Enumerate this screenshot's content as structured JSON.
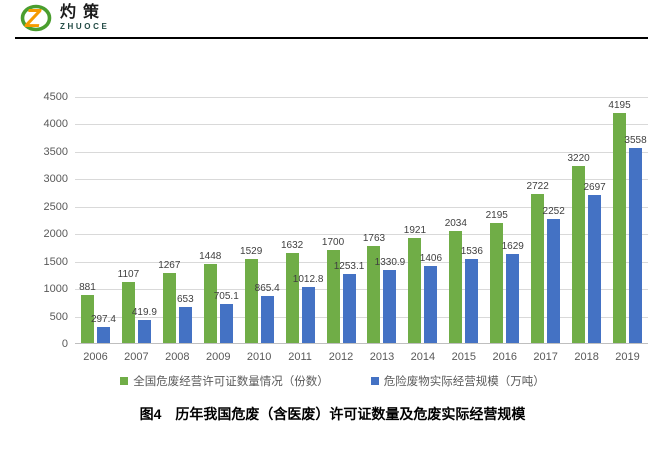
{
  "logo": {
    "name": "灼策",
    "subtitle": "ZHUOCE"
  },
  "caption": "图4　历年我国危废（含医废）许可证数量及危废实际经营规模",
  "colors": {
    "series_green": "#70AD47",
    "series_blue": "#4472C4",
    "gridline": "#D9D9D9",
    "axis_text": "#595959",
    "data_label": "#404040"
  },
  "chart_data": {
    "type": "bar",
    "categories": [
      "2006",
      "2007",
      "2008",
      "2009",
      "2010",
      "2011",
      "2012",
      "2013",
      "2014",
      "2015",
      "2016",
      "2017",
      "2018",
      "2019"
    ],
    "series": [
      {
        "name": "全国危废经营许可证数量情况（份数）",
        "key": "permits",
        "color": "#70AD47",
        "values": [
          881,
          1107,
          1267,
          1448,
          1529,
          1632,
          1700,
          1763,
          1921,
          2034,
          2195,
          2722,
          3220,
          4195
        ]
      },
      {
        "name": "危险废物实际经营规模（万吨）",
        "key": "scale",
        "color": "#4472C4",
        "values": [
          297.4,
          419.9,
          653,
          705.1,
          865.4,
          1012.8,
          1253.1,
          1330.9,
          1406,
          1536,
          1629,
          2252,
          2697,
          3558
        ]
      }
    ],
    "title": "",
    "xlabel": "",
    "ylabel": "",
    "ylim": [
      0,
      4500
    ],
    "yticks": [
      0,
      500,
      1000,
      1500,
      2000,
      2500,
      3000,
      3500,
      4000,
      4500
    ],
    "grid": true,
    "data_labels": true,
    "legend_position": "bottom"
  }
}
